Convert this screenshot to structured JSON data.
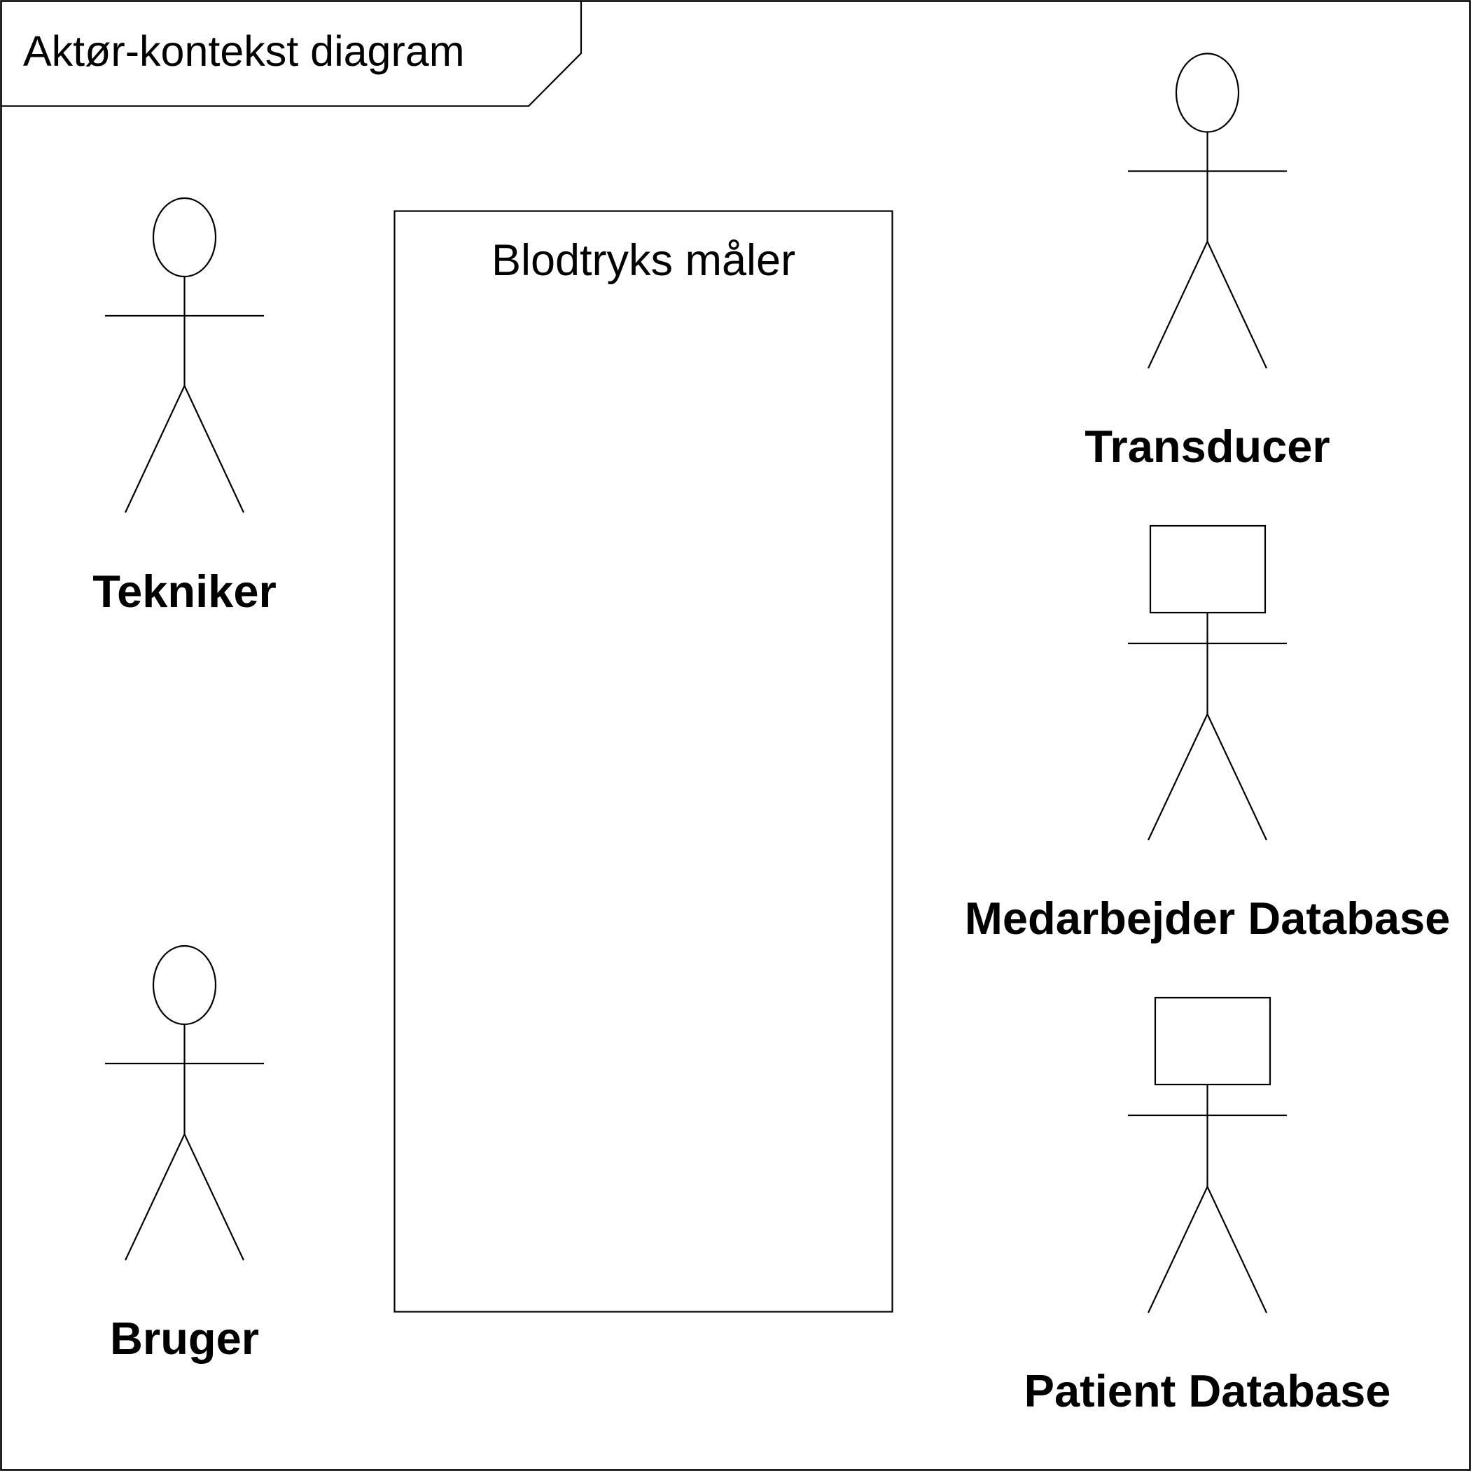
{
  "diagram": {
    "title": "Aktør-kontekst diagram",
    "system": {
      "name": "Blodtryks måler"
    },
    "actors": {
      "tekniker": {
        "label": "Tekniker",
        "icon": "stick-figure-icon"
      },
      "bruger": {
        "label": "Bruger",
        "icon": "stick-figure-icon"
      },
      "transducer": {
        "label": "Transducer",
        "icon": "stick-figure-icon"
      },
      "medarbejder_database": {
        "label": "Medarbejder Database",
        "icon": "box-head-actor-icon"
      },
      "patient_database": {
        "label": "Patient Database",
        "icon": "box-head-actor-icon"
      }
    },
    "colors": {
      "line": "#000000",
      "background": "#ffffff"
    }
  }
}
